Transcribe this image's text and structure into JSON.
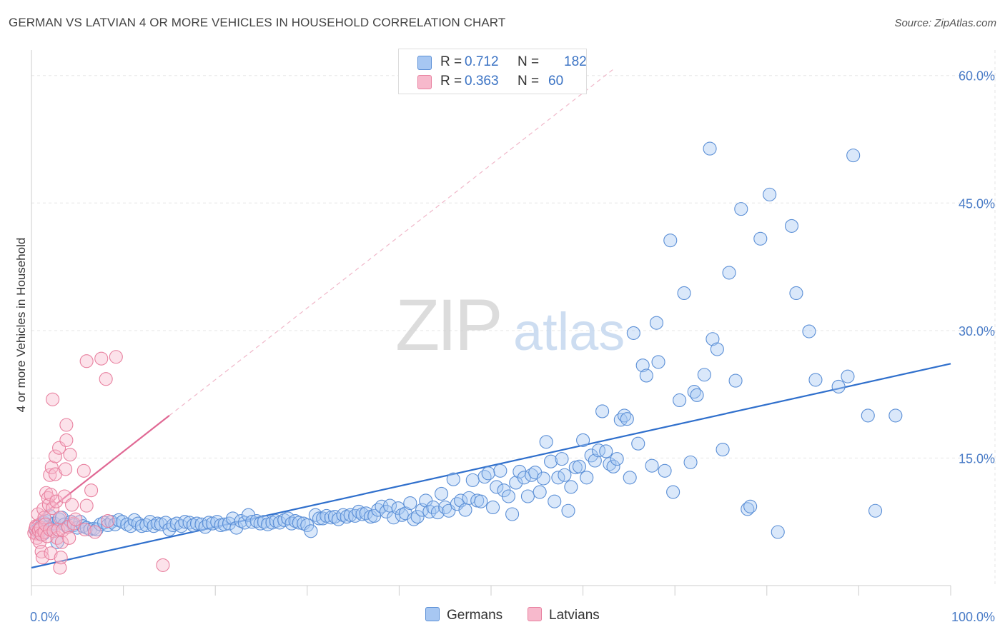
{
  "title": "GERMAN VS LATVIAN 4 OR MORE VEHICLES IN HOUSEHOLD CORRELATION CHART",
  "source": "Source: ZipAtlas.com",
  "watermark": {
    "zip": "ZIP",
    "atlas": "atlas"
  },
  "legend": {
    "rows": [
      {
        "r_label": "R =",
        "r_value": "0.712",
        "n_label": "N =",
        "n_value": "182",
        "color": "#a7c7f2"
      },
      {
        "r_label": "R =",
        "r_value": "0.363",
        "n_label": "N =",
        "n_value": "60",
        "color": "#f7b9cc"
      }
    ]
  },
  "bottom_legend": [
    {
      "label": "Germans",
      "color": "#a7c7f2"
    },
    {
      "label": "Latvians",
      "color": "#f7b9cc"
    }
  ],
  "chart_data": {
    "type": "scatter",
    "title": "GERMAN VS LATVIAN 4 OR MORE VEHICLES IN HOUSEHOLD CORRELATION CHART",
    "xlabel": "",
    "ylabel": "4 or more Vehicles in Household",
    "xlim": [
      0,
      100
    ],
    "ylim": [
      0,
      63
    ],
    "x_tick_labels": [
      "0.0%",
      "100.0%"
    ],
    "y_ticks": [
      15,
      30,
      45,
      60
    ],
    "y_tick_labels": [
      "15.0%",
      "30.0%",
      "45.0%",
      "60.0%"
    ],
    "grid": true,
    "legend_placement": "top-center",
    "series": [
      {
        "name": "Germans",
        "color": "#a7c7f2",
        "stroke": "#5b8fd6",
        "trend": {
          "x": [
            0,
            100
          ],
          "y": [
            2.1,
            26.1
          ],
          "color": "#2f6fcc"
        },
        "points": [
          [
            0.5,
            6.5
          ],
          [
            0.7,
            6.6
          ],
          [
            0.8,
            6.2
          ],
          [
            1.0,
            6.8
          ],
          [
            1.1,
            7.1
          ],
          [
            1.3,
            6.1
          ],
          [
            1.4,
            7.4
          ],
          [
            1.6,
            7.6
          ],
          [
            1.8,
            6.9
          ],
          [
            2.0,
            8.2
          ],
          [
            2.2,
            6.7
          ],
          [
            2.5,
            7.3
          ],
          [
            2.8,
            5.1
          ],
          [
            3.0,
            7.8
          ],
          [
            3.3,
            8.0
          ],
          [
            3.6,
            7.2
          ],
          [
            3.9,
            6.9
          ],
          [
            4.3,
            7.5
          ],
          [
            4.6,
            7.1
          ],
          [
            5.0,
            6.8
          ],
          [
            5.3,
            7.5
          ],
          [
            5.6,
            7.0
          ],
          [
            6.0,
            6.8
          ],
          [
            6.4,
            6.6
          ],
          [
            6.8,
            6.7
          ],
          [
            7.1,
            6.6
          ],
          [
            7.5,
            7.2
          ],
          [
            7.9,
            7.4
          ],
          [
            8.3,
            7.1
          ],
          [
            8.7,
            7.5
          ],
          [
            9.1,
            7.2
          ],
          [
            9.5,
            7.7
          ],
          [
            9.9,
            7.5
          ],
          [
            10.4,
            7.2
          ],
          [
            10.8,
            7.0
          ],
          [
            11.2,
            7.7
          ],
          [
            11.6,
            7.3
          ],
          [
            12.0,
            7.0
          ],
          [
            12.5,
            7.1
          ],
          [
            12.9,
            7.5
          ],
          [
            13.3,
            7.0
          ],
          [
            13.7,
            7.3
          ],
          [
            14.1,
            7.2
          ],
          [
            14.6,
            7.4
          ],
          [
            15.0,
            6.6
          ],
          [
            15.4,
            7.1
          ],
          [
            15.8,
            7.3
          ],
          [
            16.3,
            7.0
          ],
          [
            16.7,
            7.5
          ],
          [
            17.2,
            7.4
          ],
          [
            17.6,
            7.1
          ],
          [
            18.0,
            7.3
          ],
          [
            18.5,
            7.2
          ],
          [
            18.9,
            6.9
          ],
          [
            19.3,
            7.4
          ],
          [
            19.7,
            7.3
          ],
          [
            20.2,
            7.5
          ],
          [
            20.6,
            7.1
          ],
          [
            21.0,
            7.2
          ],
          [
            21.5,
            7.3
          ],
          [
            21.9,
            7.9
          ],
          [
            22.3,
            6.8
          ],
          [
            22.8,
            7.6
          ],
          [
            23.2,
            7.4
          ],
          [
            23.6,
            8.3
          ],
          [
            24.0,
            7.5
          ],
          [
            24.5,
            7.6
          ],
          [
            24.9,
            7.3
          ],
          [
            25.3,
            7.5
          ],
          [
            25.7,
            7.2
          ],
          [
            26.2,
            7.4
          ],
          [
            26.6,
            7.6
          ],
          [
            27.0,
            7.4
          ],
          [
            27.5,
            7.7
          ],
          [
            27.9,
            7.9
          ],
          [
            28.3,
            7.3
          ],
          [
            28.7,
            7.6
          ],
          [
            29.1,
            7.4
          ],
          [
            29.6,
            7.3
          ],
          [
            30.0,
            7.1
          ],
          [
            30.4,
            6.4
          ],
          [
            30.9,
            8.3
          ],
          [
            31.3,
            7.9
          ],
          [
            31.7,
            7.9
          ],
          [
            32.1,
            8.2
          ],
          [
            32.6,
            8.0
          ],
          [
            33.0,
            8.1
          ],
          [
            33.4,
            7.8
          ],
          [
            33.9,
            8.3
          ],
          [
            34.3,
            8.1
          ],
          [
            34.7,
            8.3
          ],
          [
            35.2,
            8.2
          ],
          [
            35.6,
            8.7
          ],
          [
            36.0,
            8.4
          ],
          [
            36.4,
            8.5
          ],
          [
            36.9,
            8.1
          ],
          [
            37.3,
            8.2
          ],
          [
            37.7,
            8.9
          ],
          [
            38.1,
            9.3
          ],
          [
            38.6,
            8.7
          ],
          [
            39.0,
            9.4
          ],
          [
            39.4,
            8.0
          ],
          [
            39.9,
            9.1
          ],
          [
            40.3,
            8.3
          ],
          [
            40.7,
            8.5
          ],
          [
            41.2,
            9.7
          ],
          [
            41.6,
            7.8
          ],
          [
            42.0,
            8.1
          ],
          [
            42.5,
            8.9
          ],
          [
            42.9,
            10.0
          ],
          [
            43.3,
            8.7
          ],
          [
            43.7,
            9.2
          ],
          [
            44.2,
            8.6
          ],
          [
            44.6,
            10.8
          ],
          [
            45.0,
            9.2
          ],
          [
            45.4,
            8.8
          ],
          [
            45.9,
            12.5
          ],
          [
            46.3,
            9.6
          ],
          [
            46.7,
            10.0
          ],
          [
            47.2,
            8.9
          ],
          [
            47.6,
            10.3
          ],
          [
            48.0,
            12.4
          ],
          [
            48.5,
            10.0
          ],
          [
            48.9,
            9.9
          ],
          [
            49.3,
            12.8
          ],
          [
            49.7,
            13.2
          ],
          [
            50.2,
            9.2
          ],
          [
            50.6,
            11.6
          ],
          [
            51.0,
            13.5
          ],
          [
            51.4,
            11.2
          ],
          [
            51.9,
            10.5
          ],
          [
            52.3,
            8.4
          ],
          [
            52.7,
            12.1
          ],
          [
            53.1,
            13.4
          ],
          [
            53.6,
            12.7
          ],
          [
            54.0,
            10.5
          ],
          [
            54.4,
            13.0
          ],
          [
            54.8,
            13.3
          ],
          [
            55.3,
            11.0
          ],
          [
            55.7,
            12.6
          ],
          [
            56.0,
            16.9
          ],
          [
            56.5,
            14.6
          ],
          [
            56.9,
            9.9
          ],
          [
            57.3,
            12.7
          ],
          [
            57.7,
            14.9
          ],
          [
            58.0,
            13.0
          ],
          [
            58.4,
            8.8
          ],
          [
            58.7,
            11.6
          ],
          [
            59.2,
            13.9
          ],
          [
            59.6,
            14.0
          ],
          [
            60.0,
            17.1
          ],
          [
            60.4,
            12.7
          ],
          [
            60.9,
            15.3
          ],
          [
            61.3,
            14.7
          ],
          [
            61.7,
            15.9
          ],
          [
            62.1,
            20.5
          ],
          [
            62.5,
            15.8
          ],
          [
            62.9,
            14.3
          ],
          [
            63.3,
            14.0
          ],
          [
            63.7,
            14.9
          ],
          [
            64.1,
            19.5
          ],
          [
            64.5,
            20.0
          ],
          [
            64.8,
            19.6
          ],
          [
            65.1,
            12.7
          ],
          [
            65.5,
            29.7
          ],
          [
            66.0,
            16.7
          ],
          [
            66.5,
            25.9
          ],
          [
            66.9,
            24.7
          ],
          [
            67.5,
            14.1
          ],
          [
            68.0,
            30.9
          ],
          [
            68.2,
            26.3
          ],
          [
            68.9,
            13.5
          ],
          [
            69.5,
            40.6
          ],
          [
            69.8,
            11.0
          ],
          [
            70.5,
            21.8
          ],
          [
            71.0,
            34.4
          ],
          [
            71.7,
            14.5
          ],
          [
            72.1,
            22.8
          ],
          [
            72.4,
            22.4
          ],
          [
            73.2,
            24.8
          ],
          [
            73.8,
            51.4
          ],
          [
            74.1,
            29.0
          ],
          [
            74.6,
            27.8
          ],
          [
            75.2,
            16.0
          ],
          [
            75.9,
            36.8
          ],
          [
            76.6,
            24.1
          ],
          [
            77.2,
            44.3
          ],
          [
            77.9,
            9.0
          ],
          [
            78.2,
            9.3
          ],
          [
            79.3,
            40.8
          ],
          [
            80.3,
            46.0
          ],
          [
            81.2,
            6.3
          ],
          [
            82.7,
            42.3
          ],
          [
            83.2,
            34.4
          ],
          [
            84.6,
            29.9
          ],
          [
            85.3,
            24.2
          ],
          [
            87.8,
            23.4
          ],
          [
            88.8,
            24.6
          ],
          [
            89.4,
            50.6
          ],
          [
            91.0,
            20.0
          ],
          [
            91.8,
            8.8
          ],
          [
            94.0,
            20.0
          ]
        ]
      },
      {
        "name": "Latvians",
        "color": "#f7b9cc",
        "stroke": "#e8809f",
        "trend": {
          "x": [
            0,
            15
          ],
          "y": [
            7.3,
            20.0
          ],
          "color": "#e06894"
        },
        "trend_extension": {
          "x": [
            15,
            63.5
          ],
          "y": [
            20.0,
            60.9
          ]
        },
        "points": [
          [
            0.3,
            6.2
          ],
          [
            0.4,
            6.6
          ],
          [
            0.5,
            7.0
          ],
          [
            0.6,
            6.1
          ],
          [
            0.6,
            5.6
          ],
          [
            0.7,
            8.4
          ],
          [
            0.8,
            6.5
          ],
          [
            0.9,
            5.1
          ],
          [
            1.0,
            6.8
          ],
          [
            1.1,
            6.0
          ],
          [
            1.1,
            4.0
          ],
          [
            1.2,
            3.3
          ],
          [
            1.3,
            9.0
          ],
          [
            1.4,
            6.3
          ],
          [
            1.4,
            8.0
          ],
          [
            1.5,
            7.2
          ],
          [
            1.6,
            10.9
          ],
          [
            1.7,
            5.8
          ],
          [
            1.8,
            10.3
          ],
          [
            1.9,
            9.5
          ],
          [
            2.0,
            13.0
          ],
          [
            2.0,
            6.6
          ],
          [
            2.1,
            10.7
          ],
          [
            2.1,
            3.8
          ],
          [
            2.2,
            13.9
          ],
          [
            2.3,
            21.9
          ],
          [
            2.3,
            9.1
          ],
          [
            2.4,
            6.4
          ],
          [
            2.6,
            15.2
          ],
          [
            2.6,
            13.1
          ],
          [
            2.7,
            9.9
          ],
          [
            2.8,
            5.6
          ],
          [
            2.9,
            6.6
          ],
          [
            3.0,
            16.2
          ],
          [
            3.1,
            8.0
          ],
          [
            3.1,
            2.1
          ],
          [
            3.2,
            3.3
          ],
          [
            3.3,
            5.1
          ],
          [
            3.4,
            6.5
          ],
          [
            3.6,
            10.5
          ],
          [
            3.7,
            13.7
          ],
          [
            3.8,
            17.1
          ],
          [
            3.8,
            18.9
          ],
          [
            4.0,
            6.9
          ],
          [
            4.1,
            5.6
          ],
          [
            4.2,
            15.4
          ],
          [
            4.4,
            9.5
          ],
          [
            4.6,
            7.3
          ],
          [
            4.8,
            7.8
          ],
          [
            5.7,
            13.5
          ],
          [
            5.8,
            6.6
          ],
          [
            6.0,
            26.4
          ],
          [
            6.0,
            9.4
          ],
          [
            6.5,
            11.2
          ],
          [
            6.9,
            6.3
          ],
          [
            7.6,
            26.7
          ],
          [
            8.1,
            24.3
          ],
          [
            8.3,
            7.6
          ],
          [
            9.2,
            26.9
          ],
          [
            14.3,
            2.4
          ]
        ]
      }
    ]
  }
}
